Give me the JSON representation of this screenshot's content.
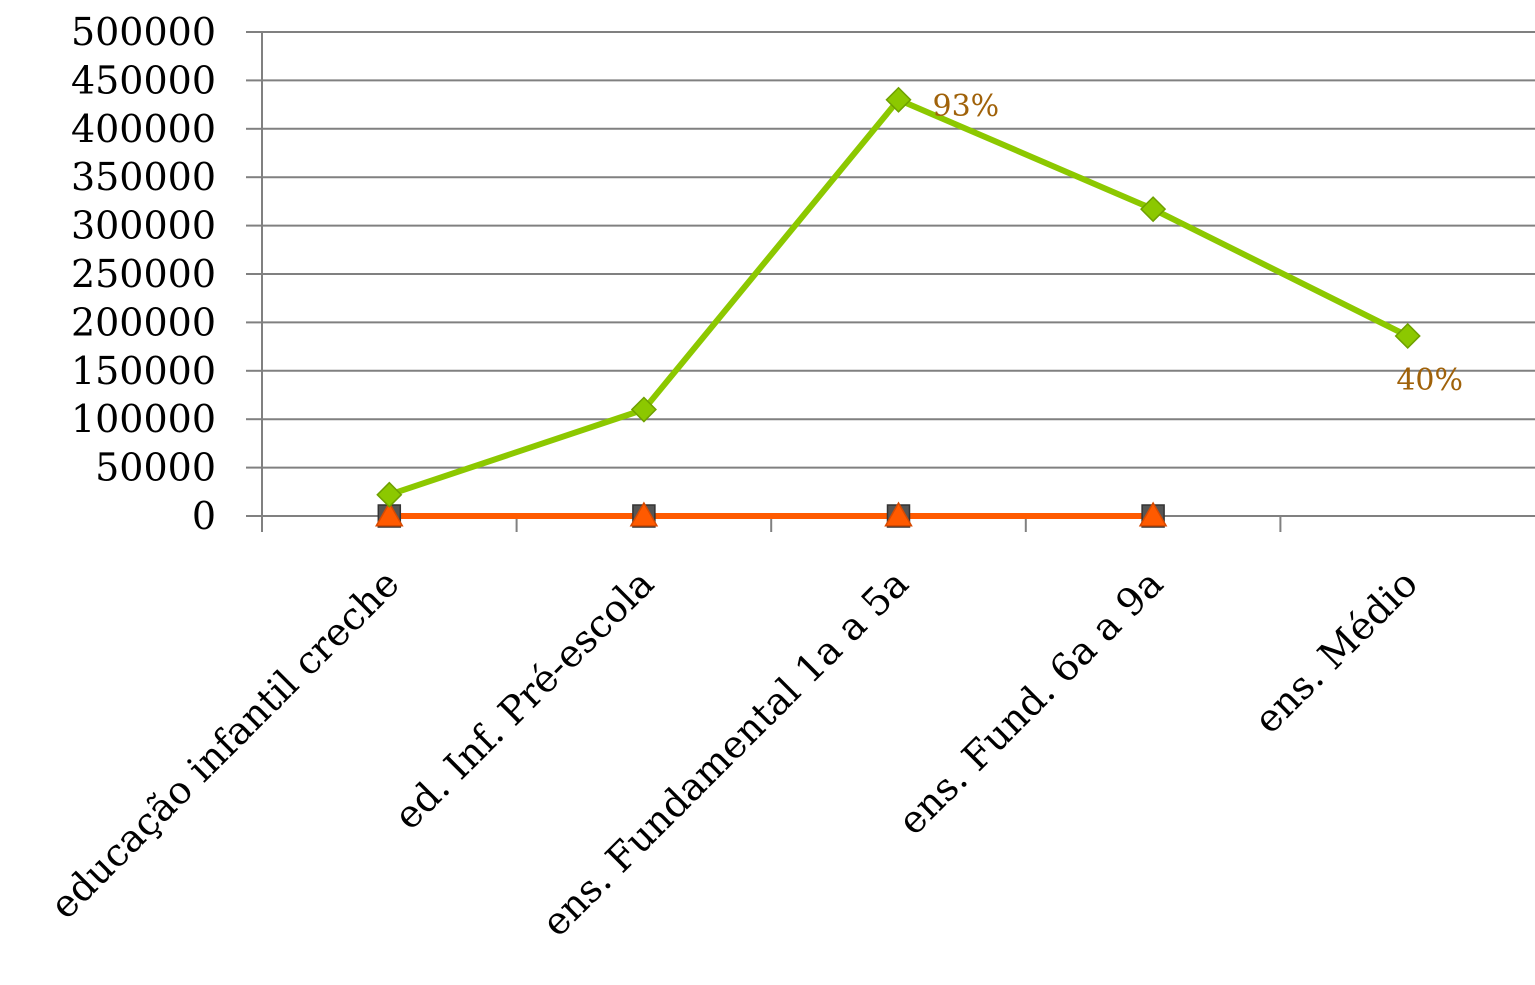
{
  "chart_data": {
    "type": "line",
    "title": "",
    "xlabel": "",
    "ylabel": "",
    "ylim": [
      0,
      500000
    ],
    "ytick_step": 50000,
    "y_ticks": [
      "0",
      "50000",
      "100000",
      "150000",
      "200000",
      "250000",
      "300000",
      "350000",
      "400000",
      "450000",
      "500000"
    ],
    "grid": true,
    "legend": "none",
    "categories": [
      "educação infantil creche",
      "ed. Inf. Pré-escola",
      "ens. Fundamental 1a a 5a",
      "ens. Fund. 6a a 9a",
      "ens. Médio"
    ],
    "series": [
      {
        "values": [
          22000,
          110000,
          430000,
          317000,
          186000
        ],
        "color": "#8cc800",
        "marker": "diamond"
      },
      {
        "values": [
          0,
          0,
          0,
          0,
          null
        ],
        "color": "#555555",
        "marker": "square"
      },
      {
        "values": [
          0,
          0,
          0,
          0,
          null
        ],
        "color": "#ff5a00",
        "marker": "triangle"
      }
    ],
    "annotations": [
      {
        "series": 0,
        "category_index": 2,
        "text": "93%",
        "position": "right"
      },
      {
        "series": 0,
        "category_index": 4,
        "text": "40%",
        "position": "below"
      }
    ],
    "label_color": "#a0620a",
    "grid_color": "#808080",
    "axis_color": "#808080"
  }
}
